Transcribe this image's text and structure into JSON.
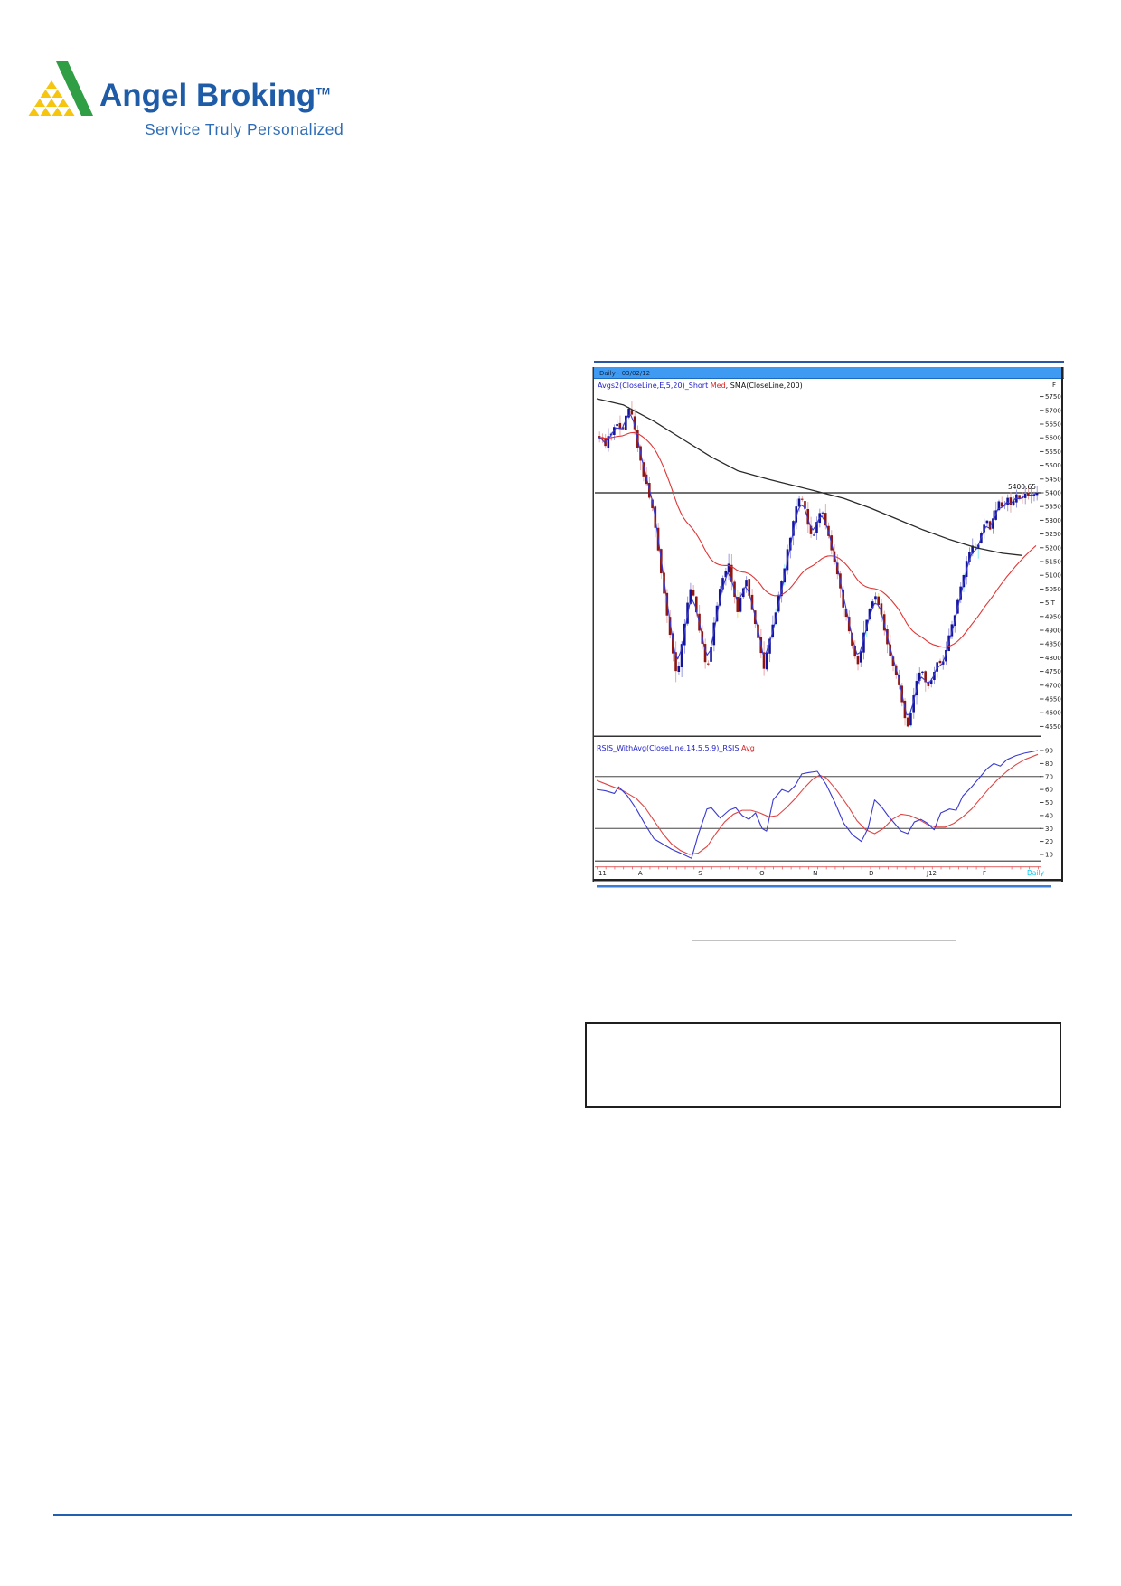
{
  "page": {
    "background": "#ffffff"
  },
  "branding": {
    "logo_text": "Angel Broking",
    "trademark": "TM",
    "tagline": "Service Truly Personalized",
    "colors": {
      "brand_blue": "#1e5ca8",
      "tagline_blue": "#2e6db6",
      "logo_green": "#2f9e44",
      "logo_yellow": "#f6c50f"
    }
  },
  "chart_window": {
    "title_bar": {
      "text": "Daily - 03/02/12",
      "bg_color": "#3f9bf1",
      "top_stripe_color": "#2a56a5"
    },
    "indicator_line": {
      "short_label": "Avgs2(CloseLine,E,5,20)_Short",
      "short_color": "#2323c8",
      "med_label": " Med",
      "med_color": "#dd2222",
      "rest_label": ", SMA(CloseLine,200)",
      "rest_color": "#111111",
      "right_corner_label": "F"
    },
    "rsi_line": {
      "label": "RSIS_WithAvg(CloseLine,14,5,5,9)_RSIS",
      "label_color": "#2323c8",
      "avg_label": " Avg",
      "avg_color": "#dd2222"
    },
    "underline_color": "#3b7cd4"
  },
  "chart_data": {
    "type": "candlestick+rsi",
    "x_axis": {
      "labels": [
        "11",
        "A",
        "S",
        "O",
        "N",
        "D",
        "J12",
        "F"
      ],
      "positions": [
        0.004,
        0.094,
        0.23,
        0.369,
        0.49,
        0.617,
        0.748,
        0.875
      ],
      "timeframe_label": "Daily",
      "timeframe_color": "#00c8f0"
    },
    "price_pane": {
      "tick_labels": [
        "5750",
        "5700",
        "5650",
        "5600",
        "5550",
        "5500",
        "5450",
        "5400",
        "5350",
        "5300",
        "5250",
        "5200",
        "5150",
        "5100",
        "5050",
        "5 T",
        "4950",
        "4900",
        "4850",
        "4800",
        "4750",
        "4700",
        "4650",
        "4600",
        "4550"
      ],
      "tick_top_value": 5750,
      "tick_step": -50,
      "ylim": [
        4520,
        5790
      ],
      "resistance_level": 5400,
      "last_price_annotation": "5400.65",
      "candle_count": 150,
      "close_anchors": [
        [
          0,
          5605
        ],
        [
          0.012,
          5570
        ],
        [
          0.025,
          5615
        ],
        [
          0.04,
          5655
        ],
        [
          0.052,
          5625
        ],
        [
          0.062,
          5700
        ],
        [
          0.072,
          5710
        ],
        [
          0.082,
          5610
        ],
        [
          0.092,
          5535
        ],
        [
          0.103,
          5450
        ],
        [
          0.113,
          5395
        ],
        [
          0.123,
          5340
        ],
        [
          0.133,
          5210
        ],
        [
          0.143,
          5080
        ],
        [
          0.153,
          4960
        ],
        [
          0.166,
          4830
        ],
        [
          0.178,
          4722
        ],
        [
          0.19,
          4870
        ],
        [
          0.2,
          4990
        ],
        [
          0.21,
          5075
        ],
        [
          0.22,
          4985
        ],
        [
          0.23,
          4890
        ],
        [
          0.24,
          4795
        ],
        [
          0.25,
          4772
        ],
        [
          0.26,
          4905
        ],
        [
          0.27,
          5015
        ],
        [
          0.285,
          5110
        ],
        [
          0.295,
          5140
        ],
        [
          0.305,
          5050
        ],
        [
          0.315,
          4968
        ],
        [
          0.325,
          5040
        ],
        [
          0.335,
          5090
        ],
        [
          0.345,
          4995
        ],
        [
          0.357,
          4915
        ],
        [
          0.367,
          4840
        ],
        [
          0.375,
          4752
        ],
        [
          0.385,
          4845
        ],
        [
          0.397,
          4935
        ],
        [
          0.41,
          5025
        ],
        [
          0.422,
          5120
        ],
        [
          0.434,
          5225
        ],
        [
          0.447,
          5330
        ],
        [
          0.457,
          5392
        ],
        [
          0.468,
          5345
        ],
        [
          0.478,
          5280
        ],
        [
          0.488,
          5235
        ],
        [
          0.498,
          5295
        ],
        [
          0.508,
          5338
        ],
        [
          0.52,
          5265
        ],
        [
          0.532,
          5180
        ],
        [
          0.545,
          5085
        ],
        [
          0.558,
          4985
        ],
        [
          0.57,
          4890
        ],
        [
          0.582,
          4810
        ],
        [
          0.59,
          4772
        ],
        [
          0.6,
          4855
        ],
        [
          0.612,
          4940
        ],
        [
          0.623,
          5000
        ],
        [
          0.633,
          5028
        ],
        [
          0.645,
          4950
        ],
        [
          0.657,
          4862
        ],
        [
          0.668,
          4792
        ],
        [
          0.678,
          4738
        ],
        [
          0.69,
          4652
        ],
        [
          0.7,
          4572
        ],
        [
          0.706,
          4548
        ],
        [
          0.716,
          4645
        ],
        [
          0.726,
          4722
        ],
        [
          0.735,
          4762
        ],
        [
          0.745,
          4718
        ],
        [
          0.753,
          4688
        ],
        [
          0.762,
          4742
        ],
        [
          0.772,
          4790
        ],
        [
          0.782,
          4762
        ],
        [
          0.792,
          4825
        ],
        [
          0.802,
          4895
        ],
        [
          0.812,
          4962
        ],
        [
          0.822,
          5032
        ],
        [
          0.832,
          5102
        ],
        [
          0.842,
          5162
        ],
        [
          0.852,
          5212
        ],
        [
          0.862,
          5185
        ],
        [
          0.872,
          5245
        ],
        [
          0.882,
          5302
        ],
        [
          0.892,
          5272
        ],
        [
          0.902,
          5322
        ],
        [
          0.912,
          5362
        ],
        [
          0.922,
          5332
        ],
        [
          0.932,
          5382
        ],
        [
          0.942,
          5352
        ],
        [
          0.952,
          5392
        ],
        [
          0.962,
          5365
        ],
        [
          0.975,
          5392
        ],
        [
          0.988,
          5398
        ],
        [
          1,
          5400.65
        ]
      ],
      "sma200_points": [
        [
          0,
          5742
        ],
        [
          0.06,
          5720
        ],
        [
          0.13,
          5660
        ],
        [
          0.2,
          5590
        ],
        [
          0.26,
          5530
        ],
        [
          0.32,
          5480
        ],
        [
          0.39,
          5449
        ],
        [
          0.45,
          5425
        ],
        [
          0.5,
          5405
        ],
        [
          0.56,
          5380
        ],
        [
          0.62,
          5345
        ],
        [
          0.68,
          5305
        ],
        [
          0.74,
          5265
        ],
        [
          0.8,
          5230
        ],
        [
          0.86,
          5200
        ],
        [
          0.92,
          5180
        ],
        [
          0.965,
          5172
        ]
      ],
      "colors": {
        "bull": "#14149b",
        "bear": "#8f1510",
        "bull_wick": "#8f8fd8",
        "bear_wick": "#e4a0a0",
        "wick_highlight_up": "#79e8f2",
        "wick_highlight_down": "#f2df55",
        "short_ma": "#3a3ad0",
        "med_ma": "#e03535",
        "sma200": "#2a2a2a",
        "resistance": "#111111"
      }
    },
    "rsi_pane": {
      "tick_labels": [
        "90",
        "80",
        "70",
        "60",
        "50",
        "40",
        "30",
        "20",
        "10"
      ],
      "overbought": 70,
      "oversold": 30,
      "baseline": 5,
      "rsi_points": [
        [
          0,
          60
        ],
        [
          0.02,
          59
        ],
        [
          0.04,
          57
        ],
        [
          0.05,
          62
        ],
        [
          0.07,
          55
        ],
        [
          0.09,
          45
        ],
        [
          0.11,
          33
        ],
        [
          0.13,
          22
        ],
        [
          0.15,
          18
        ],
        [
          0.17,
          14
        ],
        [
          0.19,
          11
        ],
        [
          0.215,
          7
        ],
        [
          0.23,
          25
        ],
        [
          0.25,
          45
        ],
        [
          0.26,
          46
        ],
        [
          0.28,
          38
        ],
        [
          0.3,
          44
        ],
        [
          0.315,
          46
        ],
        [
          0.33,
          40
        ],
        [
          0.345,
          37
        ],
        [
          0.36,
          42
        ],
        [
          0.375,
          30
        ],
        [
          0.385,
          28
        ],
        [
          0.4,
          52
        ],
        [
          0.42,
          60
        ],
        [
          0.435,
          58
        ],
        [
          0.45,
          63
        ],
        [
          0.465,
          72
        ],
        [
          0.48,
          73
        ],
        [
          0.5,
          74
        ],
        [
          0.52,
          64
        ],
        [
          0.54,
          50
        ],
        [
          0.56,
          34
        ],
        [
          0.58,
          25
        ],
        [
          0.6,
          20
        ],
        [
          0.615,
          30
        ],
        [
          0.63,
          52
        ],
        [
          0.645,
          47
        ],
        [
          0.66,
          40
        ],
        [
          0.675,
          34
        ],
        [
          0.69,
          28
        ],
        [
          0.705,
          26
        ],
        [
          0.72,
          35
        ],
        [
          0.735,
          37
        ],
        [
          0.75,
          34
        ],
        [
          0.765,
          29
        ],
        [
          0.78,
          42
        ],
        [
          0.8,
          45
        ],
        [
          0.815,
          44
        ],
        [
          0.83,
          55
        ],
        [
          0.85,
          62
        ],
        [
          0.87,
          70
        ],
        [
          0.885,
          76
        ],
        [
          0.9,
          80
        ],
        [
          0.915,
          78
        ],
        [
          0.93,
          83
        ],
        [
          0.95,
          86
        ],
        [
          0.97,
          88
        ],
        [
          1,
          90
        ]
      ],
      "avg_points": [
        [
          0,
          67
        ],
        [
          0.03,
          63
        ],
        [
          0.06,
          59
        ],
        [
          0.09,
          53
        ],
        [
          0.11,
          46
        ],
        [
          0.13,
          36
        ],
        [
          0.15,
          26
        ],
        [
          0.17,
          18
        ],
        [
          0.19,
          13
        ],
        [
          0.21,
          10
        ],
        [
          0.23,
          11
        ],
        [
          0.25,
          16
        ],
        [
          0.27,
          26
        ],
        [
          0.29,
          35
        ],
        [
          0.31,
          41
        ],
        [
          0.33,
          44
        ],
        [
          0.35,
          44
        ],
        [
          0.37,
          42
        ],
        [
          0.39,
          39
        ],
        [
          0.41,
          40
        ],
        [
          0.43,
          46
        ],
        [
          0.45,
          53
        ],
        [
          0.47,
          61
        ],
        [
          0.49,
          68
        ],
        [
          0.505,
          71
        ],
        [
          0.52,
          69
        ],
        [
          0.545,
          59
        ],
        [
          0.57,
          47
        ],
        [
          0.59,
          36
        ],
        [
          0.61,
          29
        ],
        [
          0.63,
          26
        ],
        [
          0.65,
          30
        ],
        [
          0.67,
          37
        ],
        [
          0.69,
          41
        ],
        [
          0.71,
          40
        ],
        [
          0.73,
          37
        ],
        [
          0.75,
          33
        ],
        [
          0.77,
          31
        ],
        [
          0.79,
          31
        ],
        [
          0.81,
          34
        ],
        [
          0.83,
          39
        ],
        [
          0.85,
          45
        ],
        [
          0.87,
          53
        ],
        [
          0.89,
          61
        ],
        [
          0.91,
          68
        ],
        [
          0.93,
          74
        ],
        [
          0.95,
          79
        ],
        [
          0.97,
          83
        ],
        [
          1,
          87
        ]
      ],
      "colors": {
        "rsi": "#3a3ad0",
        "avg": "#e04545",
        "levels": "#555555",
        "baseline_red": "#e06060"
      }
    }
  }
}
